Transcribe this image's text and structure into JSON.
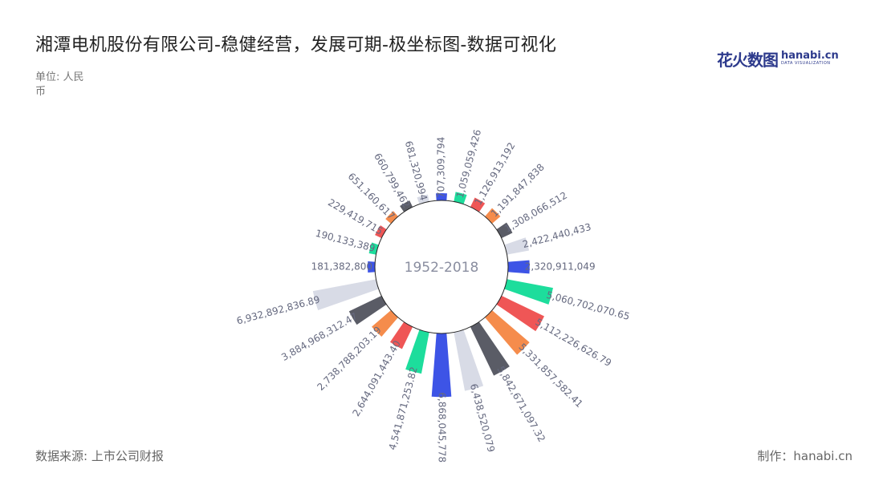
{
  "header": {
    "title": "湘潭电机股份有限公司-稳健经营，发展可期-极坐标图-数据可视化",
    "unit": "单位: 人民币"
  },
  "footer": {
    "source": "数据来源: 上市公司财报",
    "credit": "制作：hanabi.cn"
  },
  "logo": {
    "cn_text": "花火数图",
    "en_text": "hanabi.cn",
    "tagline": "DATA VISUALIZATION"
  },
  "chart_data": {
    "type": "bar",
    "coordinate": "polar",
    "center_label": "1952-2018",
    "palette": [
      "#3d54e6",
      "#1ddd9c",
      "#ef5656",
      "#f58c4c",
      "#5a5c66",
      "#d8dbe6"
    ],
    "values_labels": [
      "707,309,794",
      "1,059,059,426",
      "1,126,913,192",
      "1,191,847,838",
      "1,308,066,512",
      "2,422,440,433",
      "2,320,911,049",
      "5,060,702,070.65",
      "5,112,226,626.79",
      "5,331,857,582.41",
      "5,842,671,097.32",
      "6,438,520,079",
      "6,868,045,778",
      "4,541,871,253.82",
      "2,644,091,443.40",
      "2,738,788,203.19",
      "3,884,968,312.47",
      "6,932,892,836.89",
      "181,382,800",
      "190,133,389",
      "229,419,715",
      "651,160,617",
      "660,799,462",
      "681,320,994"
    ],
    "values": [
      707309794,
      1059059426,
      1126913192,
      1191847838,
      1308066512,
      2422440433,
      2320911049,
      5060702070.65,
      5112226626.79,
      5331857582.41,
      5842671097.32,
      6438520079,
      6868045778,
      4541871253.82,
      2644091443.4,
      2738788203.19,
      3884968312.47,
      6932892836.89,
      181382800,
      190133389,
      229419715,
      651160617,
      660799462,
      681320994
    ]
  }
}
